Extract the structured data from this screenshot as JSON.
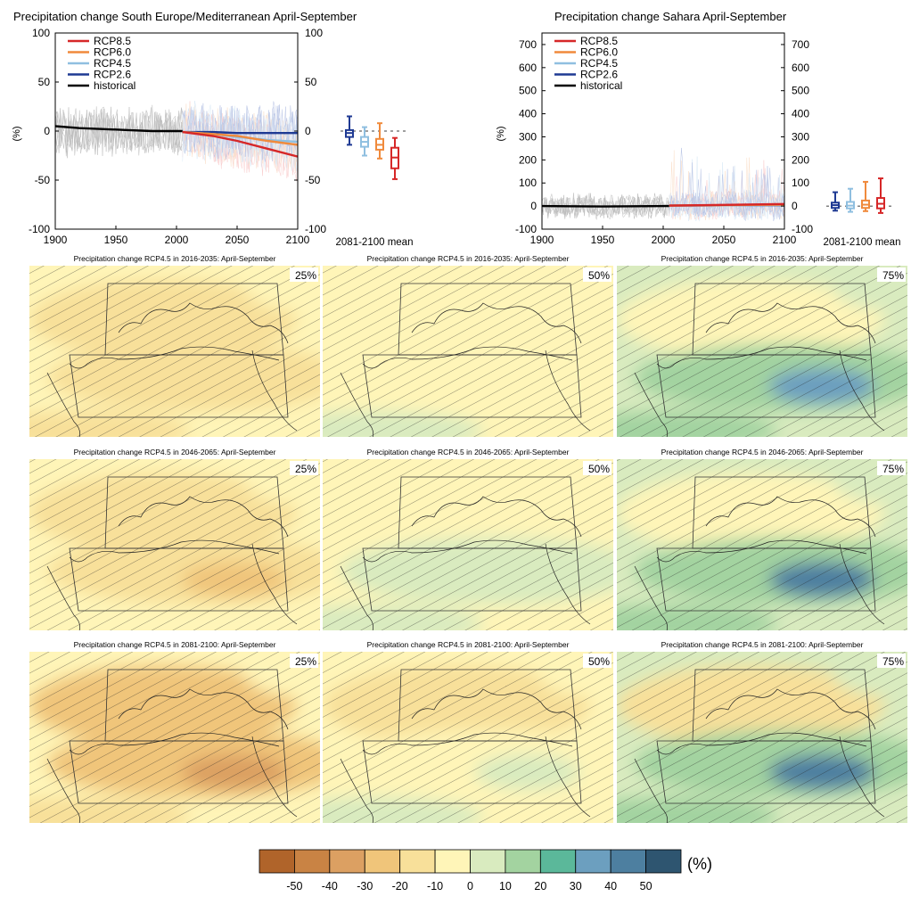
{
  "chart_data": [
    {
      "type": "line",
      "title": "Precipitation change South Europe/Mediterranean April-September",
      "ylabel": "(%)",
      "xlim": [
        1900,
        2100
      ],
      "ylim": [
        -100,
        100
      ],
      "xticks": [
        1900,
        1950,
        2000,
        2050,
        2100
      ],
      "yticks": [
        100,
        50,
        0,
        -50,
        -100
      ],
      "legend": [
        "RCP8.5",
        "RCP6.0",
        "RCP4.5",
        "RCP2.6",
        "historical"
      ],
      "legend_position": "top-left",
      "series": [
        {
          "name": "historical",
          "color": "#000000",
          "x": [
            1900,
            1920,
            1940,
            1960,
            1980,
            2005
          ],
          "y": [
            5,
            3,
            2,
            1,
            0,
            0
          ]
        },
        {
          "name": "RCP2.6",
          "color": "#1f3a93",
          "x": [
            2005,
            2030,
            2050,
            2075,
            2100
          ],
          "y": [
            -1,
            -1,
            -2,
            -2,
            -2
          ]
        },
        {
          "name": "RCP4.5",
          "color": "#8fbfe0",
          "x": [
            2005,
            2030,
            2050,
            2075,
            2100
          ],
          "y": [
            -1,
            -3,
            -6,
            -9,
            -11
          ]
        },
        {
          "name": "RCP6.0",
          "color": "#f08a3c",
          "x": [
            2005,
            2030,
            2050,
            2075,
            2100
          ],
          "y": [
            -1,
            -3,
            -5,
            -10,
            -14
          ]
        },
        {
          "name": "RCP8.5",
          "color": "#d62728",
          "x": [
            2005,
            2030,
            2050,
            2075,
            2100
          ],
          "y": [
            -1,
            -5,
            -10,
            -18,
            -26
          ]
        }
      ],
      "boxplots": {
        "label": "2081-2100 mean",
        "boxes": [
          {
            "name": "RCP2.6",
            "color": "#1f3a93",
            "min": -14,
            "q1": -6,
            "median": -2,
            "q3": 1,
            "max": 15
          },
          {
            "name": "RCP4.5",
            "color": "#8fbfe0",
            "min": -25,
            "q1": -16,
            "median": -11,
            "q3": -6,
            "max": 4
          },
          {
            "name": "RCP6.0",
            "color": "#f08a3c",
            "min": -28,
            "q1": -19,
            "median": -14,
            "q3": -8,
            "max": 8
          },
          {
            "name": "RCP8.5",
            "color": "#d62728",
            "min": -49,
            "q1": -38,
            "median": -27,
            "q3": -17,
            "max": -7
          }
        ]
      }
    },
    {
      "type": "line",
      "title": "Precipitation change Sahara April-September",
      "ylabel": "(%)",
      "xlim": [
        1900,
        2100
      ],
      "ylim": [
        -100,
        750
      ],
      "xticks": [
        1900,
        1950,
        2000,
        2050,
        2100
      ],
      "yticks": [
        700,
        600,
        500,
        400,
        300,
        200,
        100,
        0,
        -100
      ],
      "legend": [
        "RCP8.5",
        "RCP6.0",
        "RCP4.5",
        "RCP2.6",
        "historical"
      ],
      "legend_position": "top-left",
      "series": [
        {
          "name": "historical",
          "color": "#000000",
          "x": [
            1900,
            1950,
            2005
          ],
          "y": [
            0,
            -2,
            0
          ]
        },
        {
          "name": "RCP2.6",
          "color": "#1f3a93",
          "x": [
            2005,
            2050,
            2100
          ],
          "y": [
            2,
            3,
            3
          ]
        },
        {
          "name": "RCP4.5",
          "color": "#8fbfe0",
          "x": [
            2005,
            2050,
            2100
          ],
          "y": [
            2,
            3,
            4
          ]
        },
        {
          "name": "RCP6.0",
          "color": "#f08a3c",
          "x": [
            2005,
            2050,
            2100
          ],
          "y": [
            2,
            4,
            6
          ]
        },
        {
          "name": "RCP8.5",
          "color": "#d62728",
          "x": [
            2005,
            2050,
            2100
          ],
          "y": [
            2,
            5,
            9
          ]
        }
      ],
      "boxplots": {
        "label": "2081-2100 mean",
        "boxes": [
          {
            "name": "RCP2.6",
            "color": "#1f3a93",
            "min": -20,
            "q1": -8,
            "median": 4,
            "q3": 15,
            "max": 60
          },
          {
            "name": "RCP4.5",
            "color": "#8fbfe0",
            "min": -25,
            "q1": -10,
            "median": 2,
            "q3": 18,
            "max": 75
          },
          {
            "name": "RCP6.0",
            "color": "#f08a3c",
            "min": -22,
            "q1": -8,
            "median": 6,
            "q3": 24,
            "max": 105
          },
          {
            "name": "RCP8.5",
            "color": "#d62728",
            "min": -30,
            "q1": -10,
            "median": 10,
            "q3": 35,
            "max": 120
          }
        ]
      }
    },
    {
      "type": "heatmap",
      "panel_titles": [
        "Precipitation change RCP4.5 in 2016-2035: April-September",
        "Precipitation change RCP4.5 in 2046-2065: April-September",
        "Precipitation change RCP4.5 in 2081-2100: April-September"
      ],
      "percentiles": [
        "25%",
        "50%",
        "75%"
      ],
      "colorbar": {
        "unit": "(%)",
        "ticks": [
          "-50",
          "-40",
          "-30",
          "-20",
          "-10",
          "0",
          "10",
          "20",
          "30",
          "40",
          "50"
        ],
        "colors": [
          "#b0642a",
          "#c98344",
          "#dca062",
          "#f0c57a",
          "#f8e09a",
          "#fff5b8",
          "#d9ebbf",
          "#a3d3a0",
          "#5bb89a",
          "#6c9fbf",
          "#4d7fa0",
          "#2e5570"
        ]
      }
    }
  ]
}
